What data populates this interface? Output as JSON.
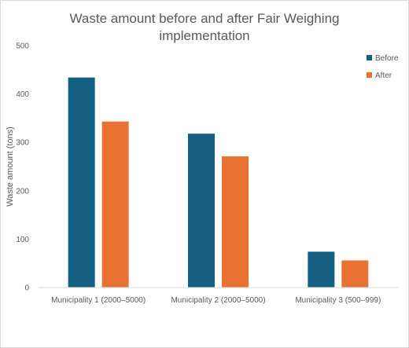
{
  "chart_data": {
    "type": "bar",
    "title_lines": [
      "Waste amount before and after Fair Weighing",
      "implementation"
    ],
    "xlabel": "",
    "ylabel": "Waste amount (tons)",
    "ylim": [
      0,
      500
    ],
    "yticks": [
      0,
      100,
      200,
      300,
      400,
      500
    ],
    "grid": false,
    "legend_position": "top-right",
    "categories": [
      "Municipality 1 (2000–5000)",
      "Municipality 2 (2000–5000)",
      "Municipality 3 (500–999)"
    ],
    "series": [
      {
        "name": "Before",
        "color": "#156082",
        "values": [
          434,
          318,
          74
        ]
      },
      {
        "name": "After",
        "color": "#E97132",
        "values": [
          343,
          271,
          56
        ]
      }
    ]
  }
}
